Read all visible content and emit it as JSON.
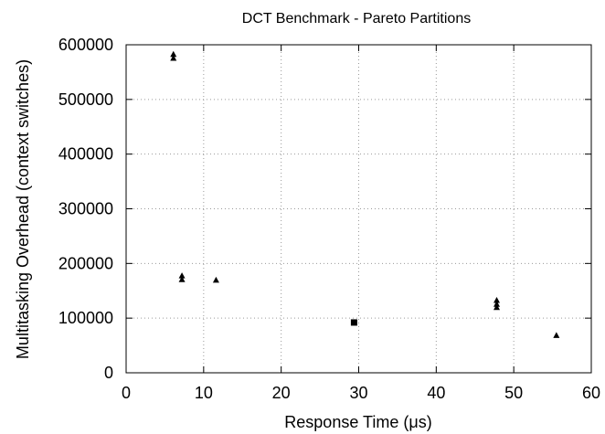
{
  "chart_data": {
    "type": "scatter",
    "title": "DCT Benchmark - Pareto Partitions",
    "xlabel": "Response Time (μs)",
    "ylabel": "Multitasking Overhead (context switches)",
    "xlim": [
      0,
      60
    ],
    "ylim": [
      0,
      600000
    ],
    "xticks": [
      0,
      10,
      20,
      30,
      40,
      50,
      60
    ],
    "yticks": [
      0,
      100000,
      200000,
      300000,
      400000,
      500000,
      600000
    ],
    "grid": true,
    "series": [
      {
        "marker": "triangle",
        "points": [
          {
            "x": 6.1,
            "y": 582000
          },
          {
            "x": 6.1,
            "y": 575000
          },
          {
            "x": 7.2,
            "y": 177000
          },
          {
            "x": 7.2,
            "y": 170000
          },
          {
            "x": 11.6,
            "y": 169000
          },
          {
            "x": 47.8,
            "y": 132000
          },
          {
            "x": 47.8,
            "y": 125000
          },
          {
            "x": 47.8,
            "y": 119000
          },
          {
            "x": 55.5,
            "y": 68000
          }
        ]
      },
      {
        "marker": "square",
        "points": [
          {
            "x": 29.4,
            "y": 92000
          }
        ]
      }
    ]
  }
}
